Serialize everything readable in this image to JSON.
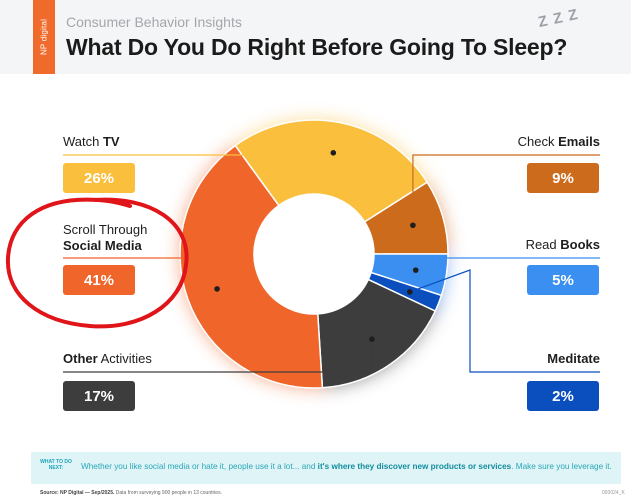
{
  "header": {
    "brand": "NP digital",
    "kicker": "Consumer Behavior Insights",
    "title": "What Do You Do Right Before Going To Sleep?",
    "zzz": "Z Z Z"
  },
  "chart_data": {
    "type": "pie",
    "donut": true,
    "title": "What Do You Do Right Before Going To Sleep?",
    "categories": [
      "Watch TV",
      "Check Emails",
      "Read Books",
      "Meditate",
      "Other Activities",
      "Scroll Through Social Media"
    ],
    "values": [
      26,
      9,
      5,
      2,
      17,
      41
    ],
    "value_labels": [
      "26%",
      "9%",
      "5%",
      "2%",
      "17%",
      "41%"
    ],
    "colors": [
      "#fbbf3e",
      "#cd6b1d",
      "#3b8ff0",
      "#0b4fbf",
      "#3d3d3d",
      "#f0652a"
    ]
  },
  "labels": {
    "watch_tv_pre": "Watch ",
    "watch_tv_bold": "TV",
    "check_emails_pre": "Check ",
    "check_emails_bold": "Emails",
    "social_line1": "Scroll Through",
    "social_line2": "Social Media",
    "read_books_pre": "Read ",
    "read_books_bold": "Books",
    "other_bold": "Other",
    "other_post": " Activities",
    "meditate_bold": "Meditate"
  },
  "tip": {
    "tag": "WHAT TO DO NEXT:",
    "text_pre": "Whether you like social media or hate it, people use it a lot... and ",
    "text_bold": "it's where they discover new products or services",
    "text_post": ". Make sure you leverage it."
  },
  "footer": {
    "source_bold": "Source: NP Digital — Sep/2025.",
    "source_rest": " Data from surveying 900 people in 13 countries.",
    "code": "093024_K"
  },
  "colors": {
    "accent": "#f06a2b",
    "annotation_circle": "#e0151a",
    "tip_bg": "#dff4f6"
  }
}
